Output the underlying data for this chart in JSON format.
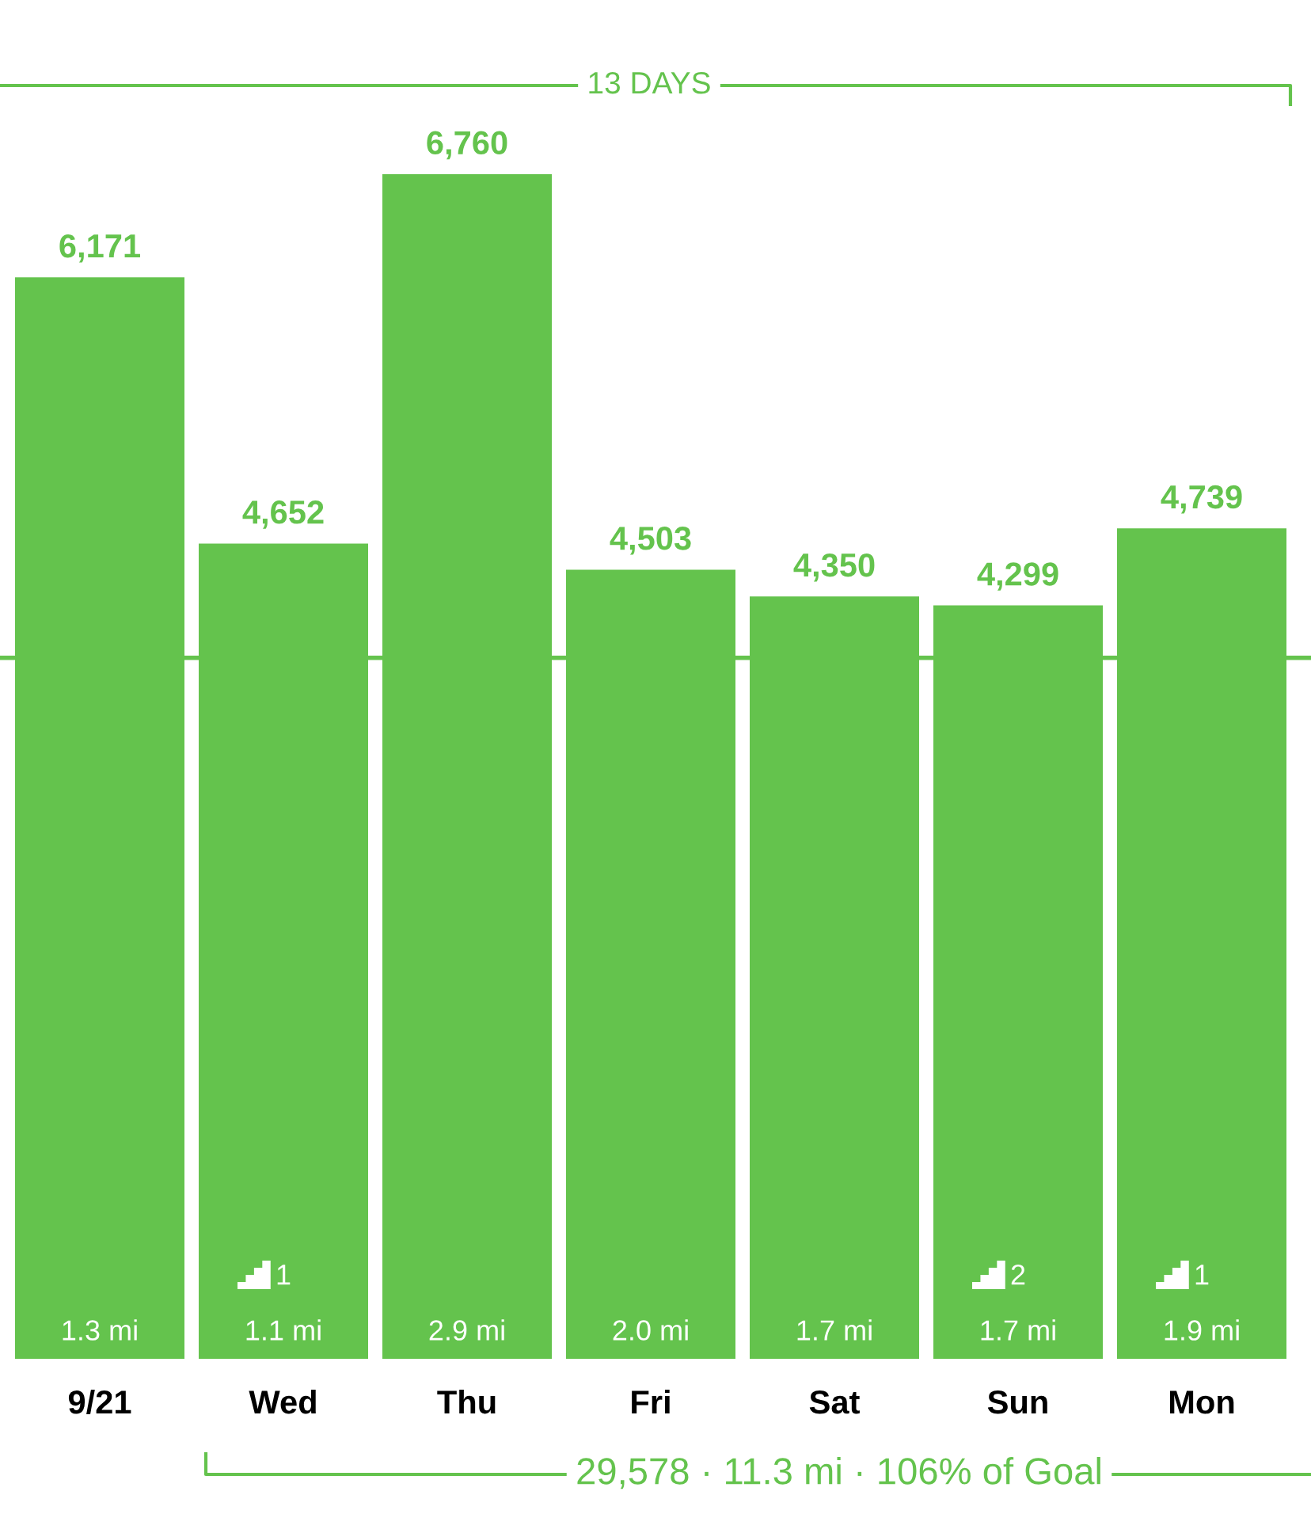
{
  "chart_data": {
    "type": "bar",
    "categories": [
      "9/21",
      "Wed",
      "Thu",
      "Fri",
      "Sat",
      "Sun",
      "Mon"
    ],
    "values": [
      6171,
      4652,
      6760,
      4503,
      4350,
      4299,
      4739
    ],
    "color": "#64c34d",
    "value_labels": [
      "6,171",
      "4,652",
      "6,760",
      "4,503",
      "4,350",
      "4,299",
      "4,739"
    ],
    "grid": false,
    "ref_lines": [
      {
        "axis": "y",
        "value": 4000,
        "color": "#64c34d"
      }
    ],
    "annotations": [
      "13 DAYS",
      "29,578 · 11.3 mi · 106% of Goal",
      "1.3 mi",
      "1\n1.1 mi",
      "2.9 mi",
      "2.0 mi",
      "1.7 mi",
      "2\n1.7 mi",
      "1\n1.9 mi"
    ]
  }
}
